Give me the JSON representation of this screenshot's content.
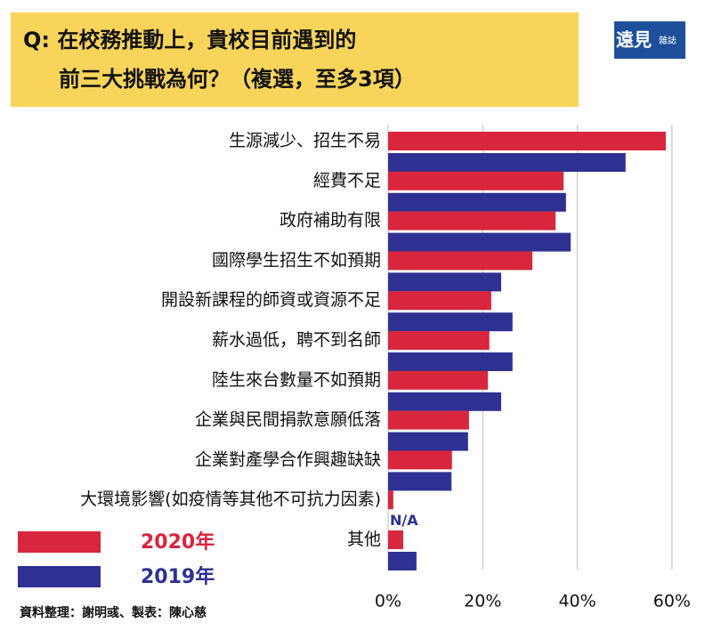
{
  "chart_data": {
    "type": "barh",
    "title": [
      "Q:  在校務推動上，貴校目前遇到的",
      "前三大挑戰為何？（複選，至多3項）"
    ],
    "brand": [
      "遠見",
      "雜誌"
    ],
    "source": "資料整理：謝明彧、製表：陳心慈",
    "categories": [
      "生源減少、招生不易",
      "經費不足",
      "政府補助有限",
      "國際學生招生不如預期",
      "開設新課程的師資或資源不足",
      "薪水過低，聘不到名師",
      "陸生來台數量不如預期",
      "企業與民間捐款意願低落",
      "企業對產學合作興趣缺缺",
      "大環境影響(如疫情等其他不可抗力因素)",
      "其他"
    ],
    "series": [
      {
        "name": "2020年",
        "color": "#d7263d",
        "values": [
          58.7,
          37.1,
          35.4,
          30.5,
          21.8,
          21.4,
          21.1,
          17.1,
          13.5,
          1.1,
          3.2
        ]
      },
      {
        "name": "2019年",
        "color": "#2e3192",
        "values": [
          50.2,
          37.6,
          38.6,
          23.9,
          26.3,
          26.3,
          23.9,
          16.9,
          13.4,
          null,
          6.0
        ],
        "value_labels": [
          null,
          null,
          null,
          null,
          null,
          null,
          null,
          null,
          null,
          "N/A",
          null
        ]
      }
    ],
    "xlim": [
      0,
      62
    ],
    "xticks": [
      {
        "value": 0,
        "label": "0%"
      },
      {
        "value": 20,
        "label": "20%"
      },
      {
        "value": 40,
        "label": "40%"
      },
      {
        "value": 60,
        "label": "60%"
      }
    ],
    "grid": true
  }
}
